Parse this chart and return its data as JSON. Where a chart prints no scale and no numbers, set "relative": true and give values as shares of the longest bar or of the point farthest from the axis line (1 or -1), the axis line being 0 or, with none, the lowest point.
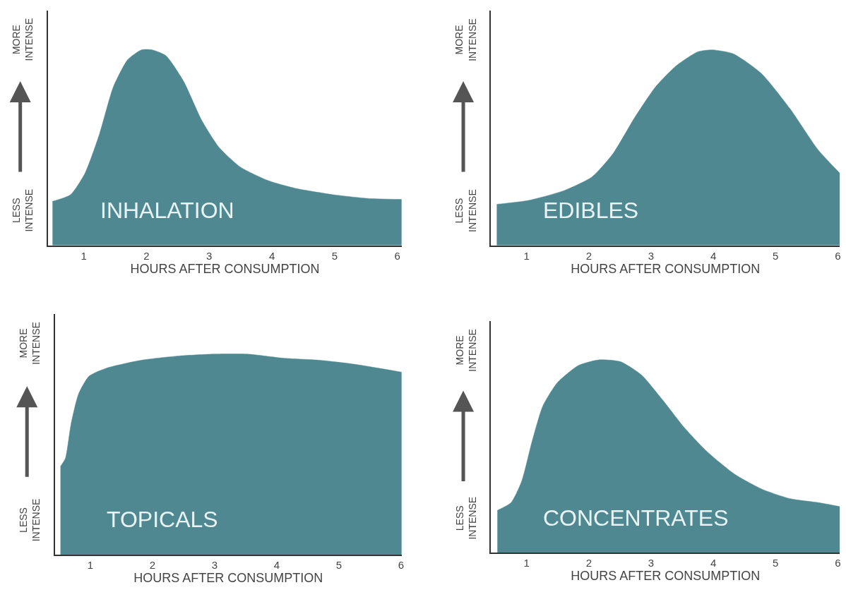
{
  "chart_data": [
    {
      "type": "area",
      "relative": true,
      "xlabel": "HOURS AFTER CONSUMPTION",
      "annotations": [
        "INHALATION",
        "LESS\nINTENSE",
        "MORE\nINTENSE"
      ],
      "xlim": [
        0.43,
        6.07
      ],
      "xticks": [
        1,
        2,
        3,
        4,
        5,
        6
      ],
      "x": [
        0.5,
        0.79,
        1.02,
        1.25,
        1.47,
        1.7,
        1.92,
        2.09,
        2.31,
        2.59,
        2.88,
        3.16,
        3.5,
        3.95,
        4.4,
        4.96,
        5.53,
        6.07
      ],
      "series": [
        {
          "color": "#4f8891",
          "values": [
            0.225,
            0.26,
            0.37,
            0.57,
            0.81,
            0.95,
            1.0,
            1.0,
            0.97,
            0.84,
            0.64,
            0.5,
            0.4,
            0.33,
            0.29,
            0.26,
            0.24,
            0.235
          ]
        }
      ]
    },
    {
      "type": "area",
      "relative": true,
      "xlabel": "HOURS AFTER CONSUMPTION",
      "annotations": [
        "EDIBLES",
        "LESS\nINTENSE",
        "MORE\nINTENSE"
      ],
      "xlim": [
        0.43,
        6.03
      ],
      "xticks": [
        1,
        2,
        3,
        4,
        5,
        6
      ],
      "x": [
        0.52,
        1.03,
        1.6,
        2.05,
        2.39,
        2.73,
        3.07,
        3.41,
        3.75,
        3.98,
        4.32,
        4.77,
        5.23,
        5.68,
        6.03
      ],
      "series": [
        {
          "color": "#4f8891",
          "values": [
            0.21,
            0.23,
            0.28,
            0.35,
            0.47,
            0.65,
            0.81,
            0.92,
            0.99,
            1.0,
            0.98,
            0.88,
            0.7,
            0.49,
            0.37
          ]
        }
      ]
    },
    {
      "type": "area",
      "relative": true,
      "xlabel": "HOURS AFTER CONSUMPTION",
      "annotations": [
        "TOPICALS",
        "LESS\nINTENSE",
        "MORE\nINTENSE"
      ],
      "xlim": [
        0.43,
        6.01
      ],
      "xticks": [
        1,
        2,
        3,
        4,
        5,
        6
      ],
      "x": [
        0.52,
        0.6,
        0.69,
        0.81,
        0.98,
        1.26,
        1.83,
        2.39,
        2.97,
        3.53,
        4.1,
        4.67,
        5.24,
        6.01
      ],
      "series": [
        {
          "color": "#4f8891",
          "values": [
            0.44,
            0.48,
            0.65,
            0.8,
            0.89,
            0.93,
            0.97,
            0.99,
            1.0,
            1.0,
            0.98,
            0.97,
            0.95,
            0.91
          ]
        }
      ]
    },
    {
      "type": "area",
      "relative": true,
      "xlabel": "HOURS AFTER CONSUMPTION",
      "annotations": [
        "CONCENTRATES",
        "LESS\nINTENSE",
        "MORE\nINTENSE"
      ],
      "xlim": [
        0.43,
        6.03
      ],
      "xticks": [
        1,
        2,
        3,
        4,
        5,
        6
      ],
      "x": [
        0.53,
        0.75,
        0.92,
        1.09,
        1.26,
        1.49,
        1.83,
        2.17,
        2.51,
        2.85,
        3.19,
        3.53,
        3.88,
        4.33,
        4.78,
        5.24,
        5.69,
        6.03
      ],
      "series": [
        {
          "color": "#4f8891",
          "values": [
            0.22,
            0.26,
            0.37,
            0.58,
            0.76,
            0.88,
            0.97,
            1.0,
            0.99,
            0.92,
            0.79,
            0.65,
            0.53,
            0.41,
            0.33,
            0.28,
            0.26,
            0.24
          ]
        }
      ]
    }
  ]
}
